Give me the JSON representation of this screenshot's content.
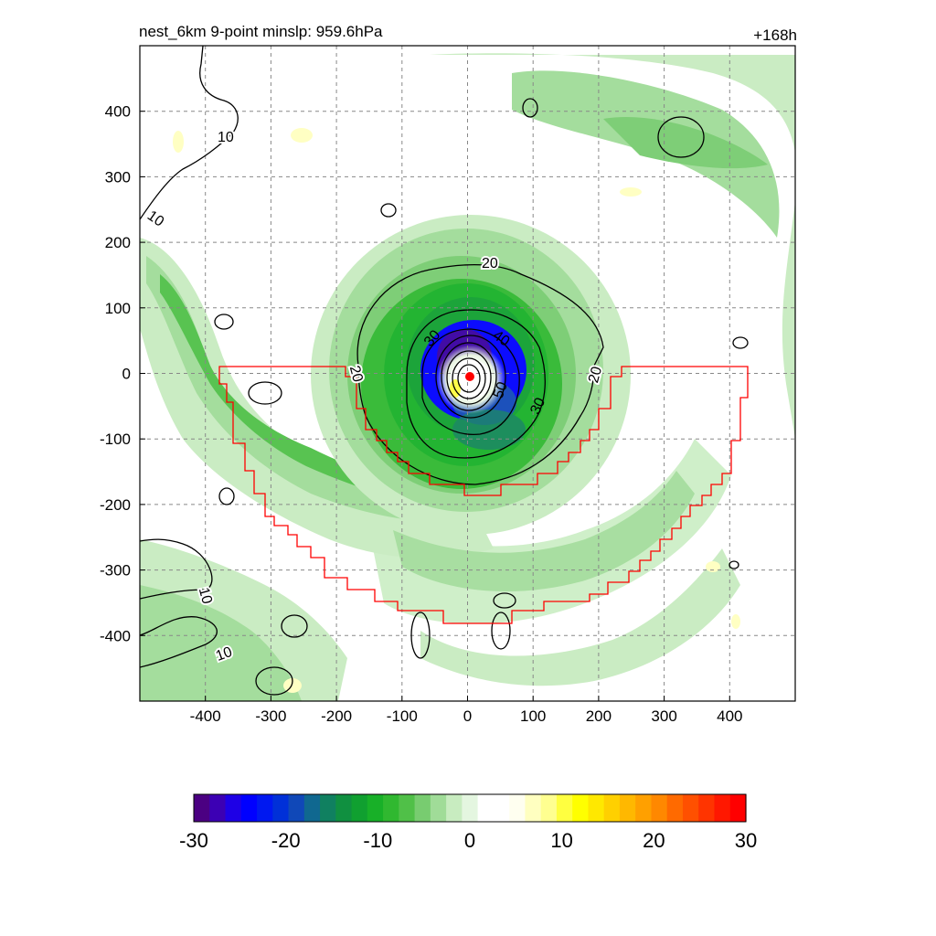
{
  "chart_data": {
    "type": "heatmap",
    "title_left": "nest_6km  9-point minslp: 959.6hPa",
    "title_right": "+168h",
    "xlim": [
      -500,
      500
    ],
    "ylim": [
      -500,
      500
    ],
    "x_ticks": [
      -400,
      -300,
      -200,
      -100,
      0,
      100,
      200,
      300,
      400
    ],
    "y_ticks": [
      -400,
      -300,
      -200,
      -100,
      0,
      100,
      200,
      300,
      400
    ],
    "grid": true,
    "colorbar": {
      "min": -30,
      "max": 30,
      "ticks": [
        -30,
        -20,
        -10,
        0,
        10,
        20,
        30
      ],
      "colors": [
        "#4b0082",
        "#3c00b4",
        "#1e00e6",
        "#0000ff",
        "#0018f0",
        "#0030d8",
        "#1048b8",
        "#106890",
        "#108060",
        "#109040",
        "#10a030",
        "#18b028",
        "#30b830",
        "#50c048",
        "#78cc70",
        "#a0dc98",
        "#c8ecc0",
        "#e4f6e0",
        "#ffffff",
        "#ffffff",
        "#fffff0",
        "#ffffc0",
        "#ffff90",
        "#ffff40",
        "#ffff00",
        "#ffe800",
        "#ffd000",
        "#ffb800",
        "#ffa000",
        "#ff8800",
        "#ff6a00",
        "#ff5000",
        "#ff3400",
        "#ff1800",
        "#ff0000"
      ]
    },
    "contour_levels_labeled": [
      "10",
      "10",
      "20",
      "20",
      "20",
      "30",
      "30",
      "40",
      "50",
      "10",
      "10"
    ],
    "storm_center": [
      0,
      -5
    ],
    "fields": {
      "eye_ring_inner": {
        "label": "50"
      },
      "ring_40": {
        "label": "40"
      }
    }
  }
}
